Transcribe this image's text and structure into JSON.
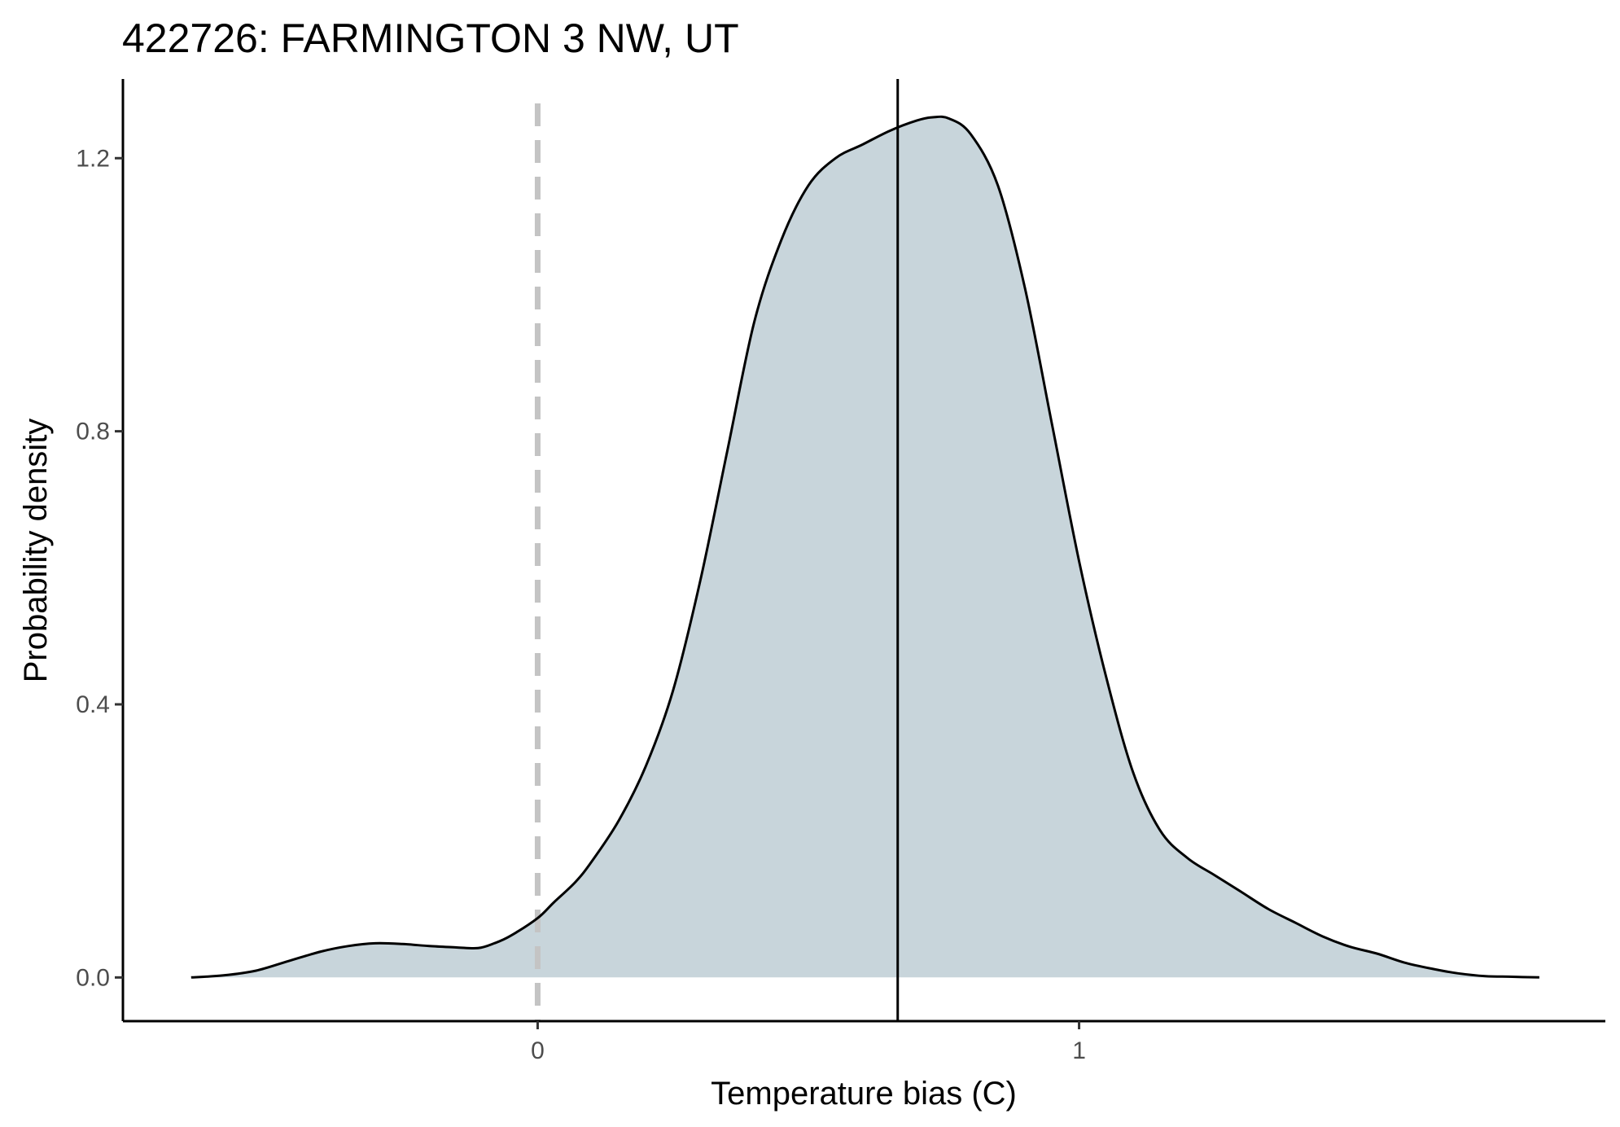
{
  "chart_data": {
    "type": "area",
    "title": "422726: FARMINGTON 3 NW, UT",
    "xlabel": "Temperature bias (C)",
    "ylabel": "Probability density",
    "xlim": [
      -0.766,
      1.972
    ],
    "ylim": [
      -0.064,
      1.316
    ],
    "x_ticks": [
      {
        "value": 0,
        "label": "0"
      },
      {
        "value": 1,
        "label": "1"
      }
    ],
    "y_ticks": [
      {
        "value": 0.0,
        "label": "0.0"
      },
      {
        "value": 0.4,
        "label": "0.4"
      },
      {
        "value": 0.8,
        "label": "0.8"
      },
      {
        "value": 1.2,
        "label": "1.2"
      }
    ],
    "grid": false,
    "legend": "none",
    "fill_color": "#c8d5db",
    "line_color": "#000000",
    "reference_lines": [
      {
        "name": "zero-line",
        "x": 0,
        "style": "dashed",
        "color": "#c4c4c4"
      },
      {
        "name": "mean-line",
        "x": 0.665,
        "style": "solid",
        "color": "#000000"
      }
    ],
    "density": {
      "x": [
        -0.64,
        -0.58,
        -0.52,
        -0.46,
        -0.4,
        -0.35,
        -0.3,
        -0.25,
        -0.2,
        -0.15,
        -0.11,
        -0.08,
        -0.05,
        0.0,
        0.03,
        0.07,
        0.1,
        0.15,
        0.2,
        0.25,
        0.3,
        0.35,
        0.4,
        0.45,
        0.5,
        0.55,
        0.6,
        0.65,
        0.7,
        0.73,
        0.76,
        0.8,
        0.85,
        0.9,
        0.95,
        1.0,
        1.05,
        1.1,
        1.15,
        1.2,
        1.25,
        1.3,
        1.35,
        1.4,
        1.45,
        1.5,
        1.55,
        1.6,
        1.65,
        1.7,
        1.75,
        1.8,
        1.85
      ],
      "y": [
        0.0,
        0.003,
        0.01,
        0.024,
        0.038,
        0.046,
        0.05,
        0.049,
        0.046,
        0.044,
        0.043,
        0.05,
        0.061,
        0.087,
        0.11,
        0.14,
        0.17,
        0.23,
        0.31,
        0.42,
        0.58,
        0.77,
        0.96,
        1.08,
        1.16,
        1.2,
        1.22,
        1.24,
        1.255,
        1.26,
        1.258,
        1.235,
        1.16,
        1.01,
        0.81,
        0.61,
        0.44,
        0.3,
        0.215,
        0.175,
        0.15,
        0.125,
        0.1,
        0.08,
        0.06,
        0.045,
        0.035,
        0.022,
        0.013,
        0.006,
        0.002,
        0.001,
        0.0
      ]
    }
  }
}
